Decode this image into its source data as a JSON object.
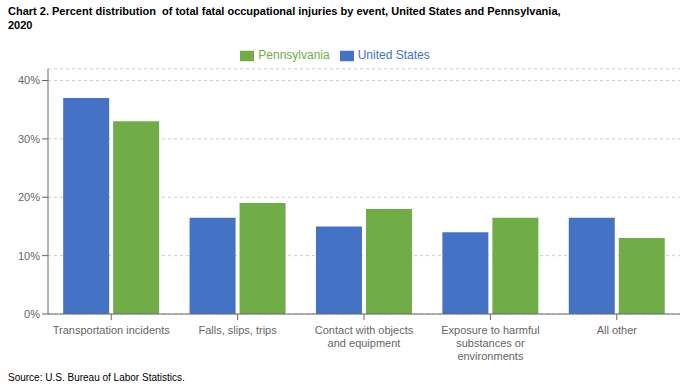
{
  "chart_data": {
    "type": "bar",
    "title": "Chart 2. Percent distribution  of total fatal occupational injuries by event, United States and Pennsylvania,\n2020",
    "categories": [
      "Transportation incidents",
      "Falls, slips, trips",
      "Contact with objects\nand equipment",
      "Exposure to harmful\nsubstances or\nenvironments",
      "All other"
    ],
    "series": [
      {
        "name": "United States",
        "color": "#4472C4",
        "values": [
          37.0,
          16.5,
          15.0,
          14.0,
          16.5
        ]
      },
      {
        "name": "Pennsylvania",
        "color": "#70AD47",
        "values": [
          33.0,
          19.0,
          18.0,
          16.5,
          13.0
        ]
      }
    ],
    "ylim": [
      0,
      42
    ],
    "yticks": [
      {
        "value": 0,
        "label": "0%"
      },
      {
        "value": 10,
        "label": "10%"
      },
      {
        "value": 20,
        "label": "20%"
      },
      {
        "value": 30,
        "label": "30%"
      },
      {
        "value": 40,
        "label": "40%"
      }
    ],
    "grid": true,
    "legend": "top",
    "annotations": [
      "Source: U.S. Bureau of Labor Statistics."
    ]
  }
}
